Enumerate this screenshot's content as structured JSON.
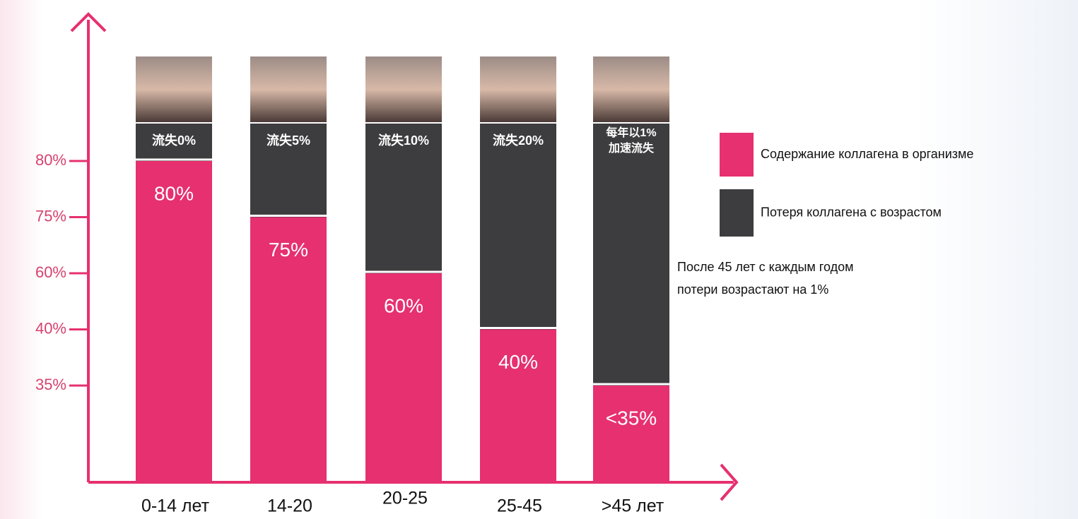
{
  "chart_data": {
    "type": "bar",
    "categories": [
      "0-14 лет",
      "14-20",
      "20-25",
      "25-45",
      ">45 лет"
    ],
    "series": [
      {
        "name": "Содержание коллагена в организме",
        "color": "#e6306f",
        "values": [
          80,
          75,
          60,
          40,
          35
        ],
        "value_labels": [
          "80%",
          "75%",
          "60%",
          "40%",
          "<35%"
        ]
      },
      {
        "name": "Потеря коллагена с возрастом",
        "color": "#3d3d3f",
        "labels": [
          [
            "流失0%"
          ],
          [
            "流失5%"
          ],
          [
            "流失10%"
          ],
          [
            "流失20%"
          ],
          [
            "每年以1%",
            "加速流失"
          ]
        ]
      }
    ],
    "ylim": [
      0,
      80
    ],
    "yticks": [
      {
        "value": 80,
        "label": "80%"
      },
      {
        "value": 75,
        "label": "75%"
      },
      {
        "value": 60,
        "label": "60%"
      },
      {
        "value": 40,
        "label": "40%"
      },
      {
        "value": 35,
        "label": "35%"
      }
    ],
    "annotation": [
      "После 45 лет с каждым годом",
      "потери возрастают на 1%"
    ],
    "axis_color": "#e6306f"
  }
}
